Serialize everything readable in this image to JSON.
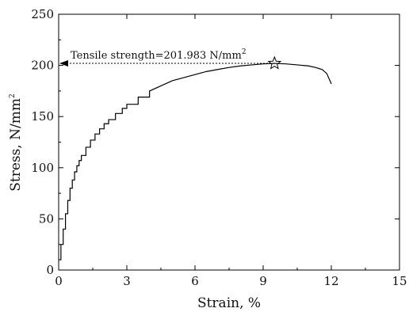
{
  "chart_data": {
    "type": "line",
    "title": "",
    "xlabel": "Strain, %",
    "ylabel_main": "Stress, N/mm",
    "ylabel_sup": "2",
    "xlim": [
      0,
      15
    ],
    "ylim": [
      0,
      250
    ],
    "xticks": [
      0,
      3,
      6,
      9,
      12,
      15
    ],
    "yticks": [
      0,
      50,
      100,
      150,
      200,
      250
    ],
    "grid": false,
    "legend": "none",
    "line_color": "#000000",
    "series": [
      {
        "x": [
          0,
          0.1,
          0.2,
          0.3,
          0.4,
          0.5,
          0.6,
          0.7,
          0.8,
          0.9,
          1.0,
          1.2,
          1.4,
          1.6,
          1.8,
          2.0,
          2.2,
          2.5,
          2.8,
          3.0,
          3.5,
          4.0,
          4.5,
          5.0,
          5.5,
          6.0,
          6.5,
          7.0,
          7.5,
          8.0,
          8.5,
          9.0,
          9.5,
          10.0,
          10.5,
          11.0,
          11.3,
          11.6,
          11.8,
          12.0
        ],
        "y": [
          10,
          25,
          40,
          55,
          68,
          80,
          88,
          96,
          102,
          107,
          112,
          120,
          127,
          133,
          138,
          143,
          147,
          153,
          158,
          162,
          169,
          175,
          180,
          185,
          188,
          191,
          194,
          196,
          198,
          199.5,
          200.5,
          201.5,
          201.98,
          201.5,
          200.5,
          199.5,
          198,
          196,
          192,
          182
        ]
      }
    ],
    "annotation": {
      "text_main": "Tensile strength=201.983 N/mm",
      "text_sup": "2",
      "x": 9.5,
      "y": 201.983
    }
  }
}
